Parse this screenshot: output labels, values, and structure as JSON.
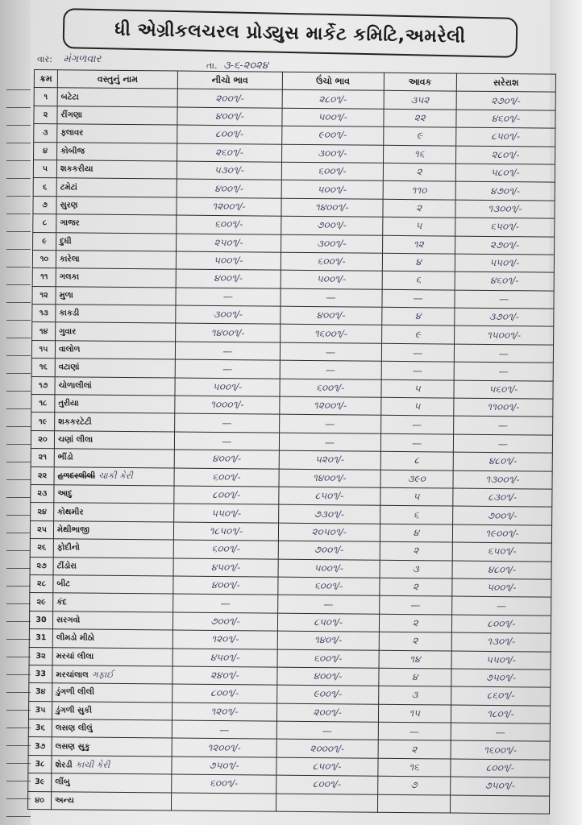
{
  "header": {
    "title": "ધી એગ્રીકલચરલ પ્રોડ્યુસ માર્કેટ કમિટિ,અમરેલી",
    "day_label": "વાર:",
    "day_value": "મંગળવાર",
    "date_label": "તા.",
    "date_value": "૩-૬-૨૦૨૪"
  },
  "columns": [
    "ક્રમ",
    "વસ્તુનું નામ",
    "નીચો ભાવ",
    "ઉંચો ભાવ",
    "આવક",
    "સરેરાશ"
  ],
  "rows": [
    {
      "no": "૧",
      "name": "બટેટા",
      "low": "૨૦૦૧/-",
      "high": "૨૮૦૧/-",
      "arrival": "૩૫૨",
      "avg": "૨૭૦૧/-"
    },
    {
      "no": "૨",
      "name": "રીંગણા",
      "low": "૪૦૦૧/-",
      "high": "૫૦૦૧/-",
      "arrival": "૨૨",
      "avg": "૪૬૦૧/-"
    },
    {
      "no": "૩",
      "name": "ફ્લાવર",
      "low": "૮૦૦૧/-",
      "high": "૯૦૦૧/-",
      "arrival": "૯",
      "avg": "૮૫૦૧/-"
    },
    {
      "no": "૪",
      "name": "કોબીજ",
      "low": "૨૬૦૧/-",
      "high": "૩૦૦૧/-",
      "arrival": "૧૬",
      "avg": "૨૮૦૧/-"
    },
    {
      "no": "૫",
      "name": "શકકરીયા",
      "low": "૫૩૦૧/-",
      "high": "૬૦૦૧/-",
      "arrival": "૨",
      "avg": "૫૮૦૧/-"
    },
    {
      "no": "૬",
      "name": "ટમેટાં",
      "low": "૪૦૦૧/-",
      "high": "૫૦૦૧/-",
      "arrival": "૧૧૦",
      "avg": "૪૭૦૧/-"
    },
    {
      "no": "૭",
      "name": "સુરણ",
      "low": "૧૨૦૦૧/-",
      "high": "૧૪૦૦૧/-",
      "arrival": "૨",
      "avg": "૧૩૦૦૧/-"
    },
    {
      "no": "૮",
      "name": "ગાજર",
      "low": "૬૦૦૧/-",
      "high": "૭૦૦૧/-",
      "arrival": "૫",
      "avg": "૬૫૦૧/-"
    },
    {
      "no": "૯",
      "name": "દુધી",
      "low": "૨૫૦૧/-",
      "high": "૩૦૦૧/-",
      "arrival": "૧૨",
      "avg": "૨૭૦૧/-"
    },
    {
      "no": "૧૦",
      "name": "કારેલા",
      "low": "૫૦૦૧/-",
      "high": "૬૦૦૧/-",
      "arrival": "૪",
      "avg": "૫૫૦૧/-"
    },
    {
      "no": "૧૧",
      "name": "ગલકા",
      "low": "૪૦૦૧/-",
      "high": "૫૦૦૧/-",
      "arrival": "૬",
      "avg": "૪૬૦૧/-"
    },
    {
      "no": "૧૨",
      "name": "મુળા",
      "low": "—",
      "high": "—",
      "arrival": "—",
      "avg": "—"
    },
    {
      "no": "૧૩",
      "name": "કાકડી",
      "low": "૩૦૦૧/-",
      "high": "૪૦૦૧/-",
      "arrival": "૪",
      "avg": "૩૭૦૧/-"
    },
    {
      "no": "૧૪",
      "name": "ગુવાર",
      "low": "૧૪૦૦૧/-",
      "high": "૧૬૦૦૧/-",
      "arrival": "૯",
      "avg": "૧૫૦૦૧/-"
    },
    {
      "no": "૧૫",
      "name": "વાલોળ",
      "low": "—",
      "high": "—",
      "arrival": "—",
      "avg": "—"
    },
    {
      "no": "૧૬",
      "name": "વટાણાં",
      "low": "—",
      "high": "—",
      "arrival": "—",
      "avg": "—"
    },
    {
      "no": "૧૭",
      "name": "ચોળાલીલાં",
      "low": "૫૦૦૧/-",
      "high": "૬૦૦૧/-",
      "arrival": "૫",
      "avg": "૫૬૦૧/-"
    },
    {
      "no": "૧૮",
      "name": "તુરીયા",
      "low": "૧૦૦૦૧/-",
      "high": "૧૨૦૦૧/-",
      "arrival": "૫",
      "avg": "૧૧૦૦૧/-"
    },
    {
      "no": "૧૯",
      "name": "શકકરટેટી",
      "low": "—",
      "high": "—",
      "arrival": "—",
      "avg": "—"
    },
    {
      "no": "૨૦",
      "name": "ચણાં લીલા",
      "low": "—",
      "high": "—",
      "arrival": "—",
      "avg": "—"
    },
    {
      "no": "૨૧",
      "name": "ભીંડો",
      "low": "૪૦૦૧/-",
      "high": "૫૨૦૧/-",
      "arrival": "૮",
      "avg": "૪૮૦૧/-"
    },
    {
      "no": "૨૨",
      "name": "હળદરલીલી",
      "note": "ચાકી કેરી",
      "struck": true,
      "low": "૬૦૦૧/-",
      "high": "૧૪૦૦૧/-",
      "arrival": "૩૯૦",
      "avg": "૧૩૦૦૧/-"
    },
    {
      "no": "૨૩",
      "name": "આદુ",
      "low": "૮૦૦૧/-",
      "high": "૮૫૦૧/-",
      "arrival": "૫",
      "avg": "૮૩૦૧/-"
    },
    {
      "no": "૨૪",
      "name": "કોથમીર",
      "low": "૫૫૦૧/-",
      "high": "૭૩૦૧/-",
      "arrival": "૬",
      "avg": "૭૦૦૧/-"
    },
    {
      "no": "૨૫",
      "name": "મેથીભાજી",
      "low": "૧૮૫૦૧/-",
      "high": "૨૦૫૦૧/-",
      "arrival": "૪",
      "avg": "૧૯૦૦૧/-"
    },
    {
      "no": "૨૬",
      "name": "ફોદીનો",
      "low": "૬૦૦૧/-",
      "high": "૭૦૦૧/-",
      "arrival": "૨",
      "avg": "૬૫૦૧/-"
    },
    {
      "no": "૨૭",
      "name": "ટીંડોરા",
      "low": "૪૫૦૧/-",
      "high": "૫૦૦૧/-",
      "arrival": "૩",
      "avg": "૪૮૦૧/-"
    },
    {
      "no": "૨૮",
      "name": "બીટ",
      "low": "૪૦૦૧/-",
      "high": "૬૦૦૧/-",
      "arrival": "૨",
      "avg": "૫૦૦૧/-"
    },
    {
      "no": "૨૯",
      "name": "કંદ",
      "low": "—",
      "high": "—",
      "arrival": "—",
      "avg": "—"
    },
    {
      "no": "30",
      "name": "સરગવો",
      "low": "૭૦૦૧/-",
      "high": "૮૫૦૧/-",
      "arrival": "૨",
      "avg": "૮૦૦૧/-"
    },
    {
      "no": "31",
      "name": "લીમડો મીઠો",
      "low": "૧૨૦૧/-",
      "high": "૧૪૦૧/-",
      "arrival": "૨",
      "avg": "૧૩૦૧/-"
    },
    {
      "no": "3૨",
      "name": "મરચાં લીલા",
      "low": "૪૫૦૧/-",
      "high": "૬૦૦૧/-",
      "arrival": "૧૪",
      "avg": "૫૫૦૧/-"
    },
    {
      "no": "33",
      "name": "મરચાંલાલ",
      "note": "ગફાઈ",
      "low": "૨૪૦૧/-",
      "high": "૪૦૦૧/-",
      "arrival": "૪",
      "avg": "૭૫૦૧/-"
    },
    {
      "no": "3૪",
      "name": "ડુંગળી લીલી",
      "low": "૮૦૦૧/-",
      "high": "૯૦૦૧/-",
      "arrival": "૩",
      "avg": "૮૬૦૧/-"
    },
    {
      "no": "3૫",
      "name": "ડુંગળી સુકી",
      "low": "૧૨૦૧/-",
      "high": "૨૦૦૧/-",
      "arrival": "૧૫",
      "avg": "૧૮૦૧/-"
    },
    {
      "no": "3૬",
      "name": "લસણ લીલું",
      "low": "—",
      "high": "—",
      "arrival": "—",
      "avg": "—"
    },
    {
      "no": "3૭",
      "name": "લસણ સુકુ",
      "low": "૧૨૦૦૧/-",
      "high": "૨૦૦૦૧/-",
      "arrival": "૨",
      "avg": "૧૬૦૦૧/-"
    },
    {
      "no": "3૮",
      "name": "શેરડી",
      "note": "કાચી કેરી",
      "low": "૭૫૦૧/-",
      "high": "૮૫૦૧/-",
      "arrival": "૧૬",
      "avg": "૮૦૦૧/-"
    },
    {
      "no": "3૯",
      "name": "લીંબુ",
      "low": "૬૦૦૧/-",
      "high": "૮૦૦૧/-",
      "arrival": "૭",
      "avg": "૭૫૦૧/-"
    },
    {
      "no": "૪૦",
      "name": "અન્ય",
      "low": "",
      "high": "",
      "arrival": "",
      "avg": ""
    }
  ]
}
